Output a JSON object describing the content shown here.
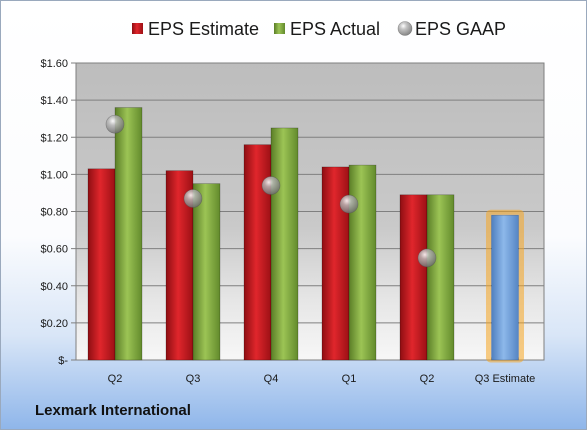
{
  "company": "Lexmark International",
  "chart_data": {
    "type": "bar",
    "categories": [
      "Q2",
      "Q3",
      "Q4",
      "Q1",
      "Q2",
      "Q3 Estimate"
    ],
    "series": [
      {
        "name": "EPS Estimate",
        "color": "#c0141b",
        "values": [
          1.03,
          1.02,
          1.16,
          1.04,
          0.89,
          null
        ]
      },
      {
        "name": "EPS Actual",
        "color": "#7aa33a",
        "values": [
          1.36,
          0.95,
          1.25,
          1.05,
          0.89,
          null
        ]
      },
      {
        "name": "EPS GAAP",
        "color": "#a6a6a6",
        "marker": "sphere",
        "values": [
          1.27,
          0.87,
          0.94,
          0.84,
          0.55,
          null
        ]
      }
    ],
    "estimate_bar": {
      "category": "Q3 Estimate",
      "value": 0.78,
      "color": "#6f9fd8",
      "glow": "#f5a623"
    },
    "yticks": [
      "$-",
      "$0.20",
      "$0.40",
      "$0.60",
      "$0.80",
      "$1.00",
      "$1.20",
      "$1.40",
      "$1.60"
    ],
    "ylim": [
      0,
      1.6
    ],
    "legend_position": "top",
    "grid": true
  }
}
